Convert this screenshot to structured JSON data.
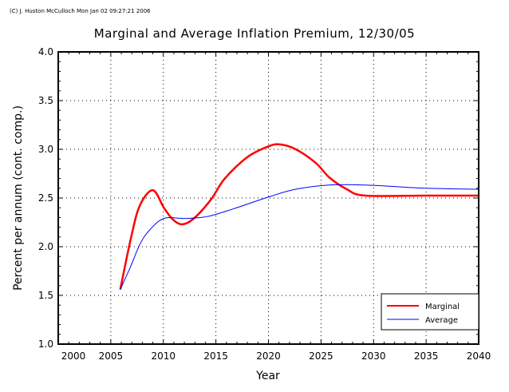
{
  "stamp": "(C) J. Huston McCulloch Mon Jan 02 09:27:21 2006",
  "chart_data": {
    "type": "line",
    "title": "Marginal and Average Inflation Premium, 12/30/05",
    "xlabel": "Year",
    "ylabel": "Percent per annum (cont. comp.)",
    "xlim": [
      2000,
      2040
    ],
    "ylim": [
      1.0,
      4.0
    ],
    "xticks": [
      2000,
      2005,
      2010,
      2015,
      2020,
      2025,
      2030,
      2035,
      2040
    ],
    "yticks": [
      "1.0",
      "1.5",
      "2.0",
      "2.5",
      "3.0",
      "3.5",
      "4.0"
    ],
    "grid": true,
    "legend": "bottom-right",
    "series": [
      {
        "name": "Marginal",
        "color": "#ff0000",
        "x": [
          2005.9,
          2006.9,
          2007.75,
          2009.0,
          2010.05,
          2010.9,
          2011.8,
          2012.9,
          2014.5,
          2015.85,
          2018.0,
          2020.0,
          2021.1,
          2022.6,
          2024.5,
          2025.8,
          2027.45,
          2029.2,
          2035.0,
          2040.0
        ],
        "y": [
          1.56,
          2.08,
          2.42,
          2.58,
          2.4,
          2.28,
          2.23,
          2.29,
          2.48,
          2.7,
          2.92,
          3.03,
          3.05,
          3.0,
          2.86,
          2.71,
          2.59,
          2.525,
          2.525,
          2.525
        ]
      },
      {
        "name": "Average",
        "color": "#0000ff",
        "x": [
          2005.9,
          2006.9,
          2007.75,
          2008.6,
          2010.05,
          2012.1,
          2014.2,
          2016.7,
          2020.0,
          2022.6,
          2026.1,
          2029.9,
          2035.0,
          2040.0
        ],
        "y": [
          1.56,
          1.8,
          2.02,
          2.16,
          2.29,
          2.29,
          2.31,
          2.39,
          2.51,
          2.59,
          2.635,
          2.63,
          2.6,
          2.59
        ]
      }
    ]
  }
}
